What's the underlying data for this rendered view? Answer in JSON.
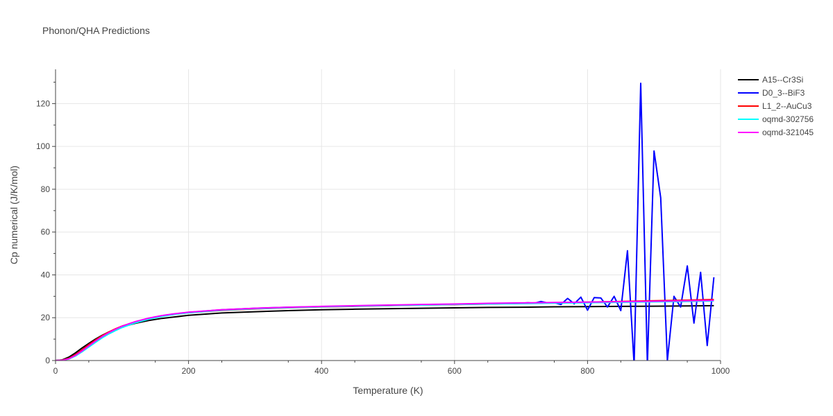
{
  "chart_data": {
    "type": "line",
    "title": "Phonon/QHA Predictions",
    "xlabel": "Temperature (K)",
    "ylabel": "Cp numerical (J/K/mol)",
    "xlim": [
      0,
      1000
    ],
    "ylim": [
      0,
      136
    ],
    "xticks": [
      0,
      200,
      400,
      600,
      800,
      1000
    ],
    "yticks": [
      0,
      20,
      40,
      60,
      80,
      100,
      120
    ],
    "grid": true,
    "legend_position": "top-right",
    "series": [
      {
        "name": "A15--Cr3Si",
        "color": "#000000",
        "x": [
          0,
          10,
          20,
          30,
          40,
          50,
          60,
          70,
          80,
          90,
          100,
          120,
          140,
          160,
          180,
          200,
          250,
          300,
          350,
          400,
          450,
          500,
          550,
          600,
          650,
          700,
          750,
          800,
          850,
          900,
          950,
          990
        ],
        "y": [
          0,
          0.3,
          1.6,
          3.6,
          5.9,
          8.0,
          10.0,
          11.8,
          13.3,
          14.6,
          15.7,
          17.4,
          18.7,
          19.7,
          20.4,
          21.1,
          22.2,
          22.8,
          23.3,
          23.7,
          24.0,
          24.2,
          24.4,
          24.6,
          24.8,
          24.9,
          25.1,
          25.2,
          25.3,
          25.4,
          25.5,
          25.6
        ]
      },
      {
        "name": "D0_3--BiF3",
        "color": "#0000ff",
        "x": [
          0,
          10,
          20,
          30,
          40,
          50,
          60,
          70,
          80,
          90,
          100,
          120,
          140,
          160,
          180,
          200,
          250,
          300,
          350,
          400,
          450,
          500,
          550,
          600,
          650,
          700,
          710,
          720,
          730,
          740,
          750,
          760,
          770,
          780,
          790,
          800,
          810,
          820,
          830,
          840,
          850,
          860,
          870,
          880,
          890,
          900,
          910,
          920,
          930,
          940,
          950,
          960,
          970,
          980,
          990
        ],
        "y": [
          0,
          0.2,
          0.9,
          2.6,
          4.8,
          7.1,
          9.4,
          11.4,
          13.2,
          14.7,
          16.0,
          18.1,
          19.7,
          20.9,
          21.8,
          22.5,
          23.7,
          24.4,
          24.9,
          25.2,
          25.5,
          25.7,
          26.0,
          26.2,
          26.5,
          26.7,
          27.0,
          26.8,
          27.6,
          26.9,
          27.0,
          26.2,
          29.0,
          26.5,
          29.6,
          23.5,
          29.4,
          29.2,
          25.0,
          30.0,
          23.3,
          51.3,
          -2,
          129.5,
          -2,
          97.9,
          76.0,
          0,
          30.0,
          25.0,
          44.2,
          17.5,
          41.2,
          7.0,
          38.9
        ]
      },
      {
        "name": "L1_2--AuCu3",
        "color": "#ff0000",
        "x": [
          0,
          10,
          20,
          30,
          40,
          50,
          60,
          70,
          80,
          90,
          100,
          120,
          140,
          160,
          180,
          200,
          250,
          300,
          350,
          400,
          450,
          500,
          550,
          600,
          650,
          700,
          750,
          800,
          850,
          900,
          950,
          990
        ],
        "y": [
          0,
          0.2,
          1.0,
          2.8,
          5.0,
          7.4,
          9.6,
          11.6,
          13.3,
          14.8,
          16.1,
          18.1,
          19.6,
          20.8,
          21.6,
          22.3,
          23.4,
          24.1,
          24.6,
          25.0,
          25.3,
          25.6,
          25.9,
          26.1,
          26.4,
          26.7,
          27.0,
          27.3,
          27.6,
          27.9,
          28.2,
          28.5
        ]
      },
      {
        "name": "oqmd-302756",
        "color": "#00ffff",
        "x": [
          0,
          10,
          20,
          30,
          40,
          50,
          60,
          70,
          80,
          90,
          100,
          120,
          140,
          160,
          180,
          200,
          250,
          300,
          350,
          400,
          450,
          500,
          550,
          600,
          650,
          700,
          750,
          800,
          850,
          900,
          950,
          990
        ],
        "y": [
          0,
          0.1,
          0.7,
          2.1,
          4.1,
          6.3,
          8.5,
          10.6,
          12.4,
          14.0,
          15.4,
          17.6,
          19.3,
          20.6,
          21.6,
          22.3,
          23.5,
          24.2,
          24.7,
          25.1,
          25.4,
          25.7,
          25.9,
          26.2,
          26.4,
          26.6,
          26.8,
          27.0,
          27.2,
          27.4,
          27.6,
          27.8
        ]
      },
      {
        "name": "oqmd-321045",
        "color": "#ff00ff",
        "x": [
          0,
          10,
          20,
          30,
          40,
          50,
          60,
          70,
          80,
          90,
          100,
          120,
          140,
          160,
          180,
          200,
          250,
          300,
          350,
          400,
          450,
          500,
          550,
          600,
          650,
          700,
          750,
          800,
          850,
          900,
          950,
          990
        ],
        "y": [
          0,
          0.1,
          0.8,
          2.4,
          4.5,
          6.8,
          9.1,
          11.2,
          13.0,
          14.6,
          16.0,
          18.2,
          19.8,
          21.0,
          21.9,
          22.6,
          23.7,
          24.4,
          24.9,
          25.3,
          25.6,
          25.9,
          26.2,
          26.4,
          26.7,
          26.9,
          27.1,
          27.3,
          27.5,
          27.7,
          27.9,
          28.1
        ]
      }
    ]
  }
}
